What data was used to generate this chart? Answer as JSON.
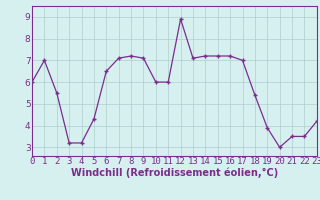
{
  "x": [
    0,
    1,
    2,
    3,
    4,
    5,
    6,
    7,
    8,
    9,
    10,
    11,
    12,
    13,
    14,
    15,
    16,
    17,
    18,
    19,
    20,
    21,
    22,
    23
  ],
  "y": [
    6.0,
    7.0,
    5.5,
    3.2,
    3.2,
    4.3,
    6.5,
    7.1,
    7.2,
    7.1,
    6.0,
    6.0,
    8.9,
    7.1,
    7.2,
    7.2,
    7.2,
    7.0,
    5.4,
    3.9,
    3.0,
    3.5,
    3.5,
    4.2
  ],
  "line_color": "#7b2d8b",
  "marker": "+",
  "marker_size": 3,
  "marker_lw": 1.0,
  "line_width": 0.9,
  "bg_color": "#d6f0f0",
  "grid_color": "#aecece",
  "xlabel": "Windchill (Refroidissement éolien,°C)",
  "xlim": [
    0,
    23
  ],
  "ylim": [
    2.6,
    9.5
  ],
  "yticks": [
    3,
    4,
    5,
    6,
    7,
    8,
    9
  ],
  "xticks": [
    0,
    1,
    2,
    3,
    4,
    5,
    6,
    7,
    8,
    9,
    10,
    11,
    12,
    13,
    14,
    15,
    16,
    17,
    18,
    19,
    20,
    21,
    22,
    23
  ],
  "tick_label_fontsize": 6.5,
  "xlabel_fontsize": 7.0,
  "tick_color": "#7b2d8b",
  "spine_color": "#7b2d8b"
}
